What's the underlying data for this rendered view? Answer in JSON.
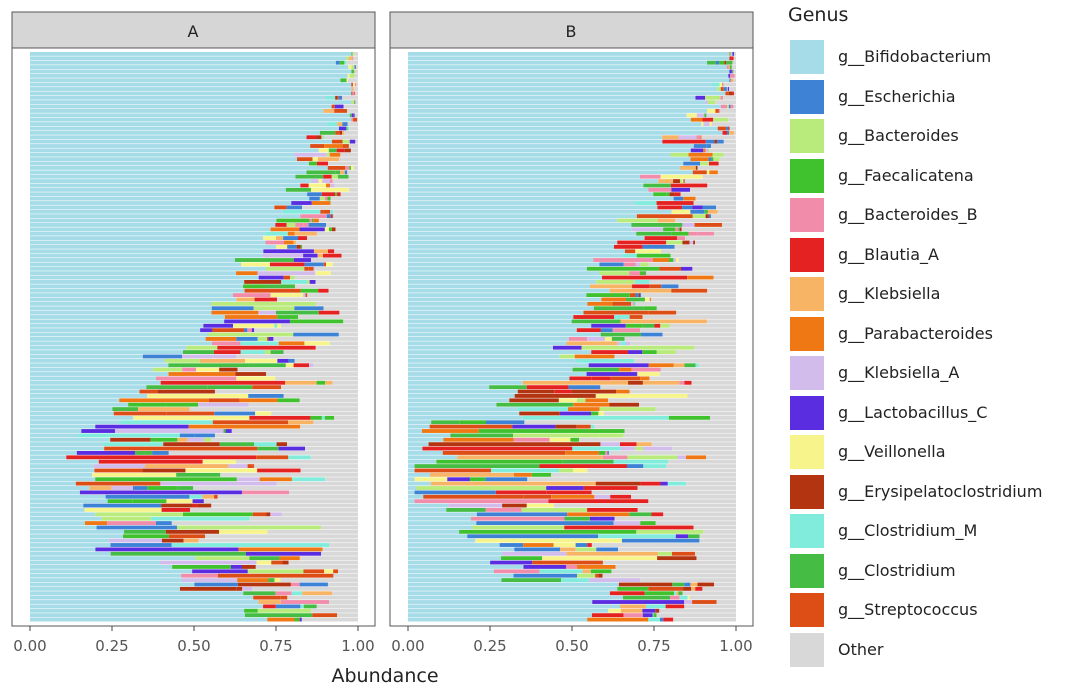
{
  "chart_data": {
    "type": "bar",
    "orientation": "horizontal",
    "stacked": true,
    "xlabel": "Abundance",
    "xlim": [
      0,
      1
    ],
    "x_ticks": [
      "0.00",
      "0.25",
      "0.50",
      "0.75",
      "1.00"
    ],
    "grid": true,
    "legend_title": "Genus",
    "legend_position": "right",
    "series": [
      {
        "name": "g__Bifidobacterium",
        "color": "#a6dce8"
      },
      {
        "name": "g__Escherichia",
        "color": "#3e82d6"
      },
      {
        "name": "g__Bacteroides",
        "color": "#b8ea7c"
      },
      {
        "name": "g__Faecalicatena",
        "color": "#3fc22e"
      },
      {
        "name": "g__Bacteroides_B",
        "color": "#f18cab"
      },
      {
        "name": "g__Blautia_A",
        "color": "#e42222"
      },
      {
        "name": "g__Klebsiella",
        "color": "#f7b465"
      },
      {
        "name": "g__Parabacteroides",
        "color": "#f07814"
      },
      {
        "name": "g__Klebsiella_A",
        "color": "#d2bcec"
      },
      {
        "name": "g__Lactobacillus_C",
        "color": "#5b2de0"
      },
      {
        "name": "g__Veillonella",
        "color": "#f6f48a"
      },
      {
        "name": "g__Erysipelatoclostridium",
        "color": "#b33410"
      },
      {
        "name": "g__Clostridium_M",
        "color": "#82ecdc"
      },
      {
        "name": "g__Clostridium",
        "color": "#45bd45"
      },
      {
        "name": "g__Streptococcus",
        "color": "#dd4d16"
      },
      {
        "name": "Other",
        "color": "#d8d8d8"
      }
    ],
    "facets": [
      {
        "label": "A",
        "sample_count": 130,
        "segments": [
          [
            0.98,
            0.02
          ],
          [
            0.95,
            0.03,
            0.02
          ],
          [
            0.9,
            0.05,
            0.05
          ],
          [
            0.85,
            0.07,
            0.08
          ],
          [
            0.8,
            0.1,
            0.05,
            0.05
          ],
          [
            0.75,
            0.15,
            0.1
          ],
          [
            0.68,
            0.18,
            0.14
          ],
          [
            0.6,
            0.2,
            0.1,
            0.1
          ],
          [
            0.5,
            0.25,
            0.15,
            0.1
          ],
          [
            0.4,
            0.3,
            0.2,
            0.1
          ],
          [
            0.3,
            0.35,
            0.2,
            0.15
          ],
          [
            0.2,
            0.4,
            0.25,
            0.15
          ],
          [
            0.15,
            0.4,
            0.3,
            0.15
          ],
          [
            0.2,
            0.25,
            0.3,
            0.25
          ],
          [
            0.25,
            0.15,
            0.35,
            0.25
          ],
          [
            0.45,
            0.1,
            0.25,
            0.2
          ],
          [
            0.7,
            0.1,
            0.1,
            0.1
          ]
        ]
      },
      {
        "label": "B",
        "sample_count": 130,
        "segments": [
          [
            0.95,
            0.03,
            0.02
          ],
          [
            0.9,
            0.05,
            0.05
          ],
          [
            0.83,
            0.07,
            0.1
          ],
          [
            0.75,
            0.1,
            0.1,
            0.05
          ],
          [
            0.68,
            0.12,
            0.1,
            0.1
          ],
          [
            0.6,
            0.15,
            0.15,
            0.1
          ],
          [
            0.55,
            0.2,
            0.15,
            0.1
          ],
          [
            0.5,
            0.25,
            0.15,
            0.1
          ],
          [
            0.3,
            0.3,
            0.2,
            0.2
          ],
          [
            0.1,
            0.4,
            0.3,
            0.2
          ],
          [
            0.05,
            0.4,
            0.35,
            0.2
          ],
          [
            0.15,
            0.3,
            0.35,
            0.2
          ],
          [
            0.3,
            0.2,
            0.3,
            0.2
          ],
          [
            0.6,
            0.1,
            0.1,
            0.2
          ]
        ]
      }
    ]
  }
}
